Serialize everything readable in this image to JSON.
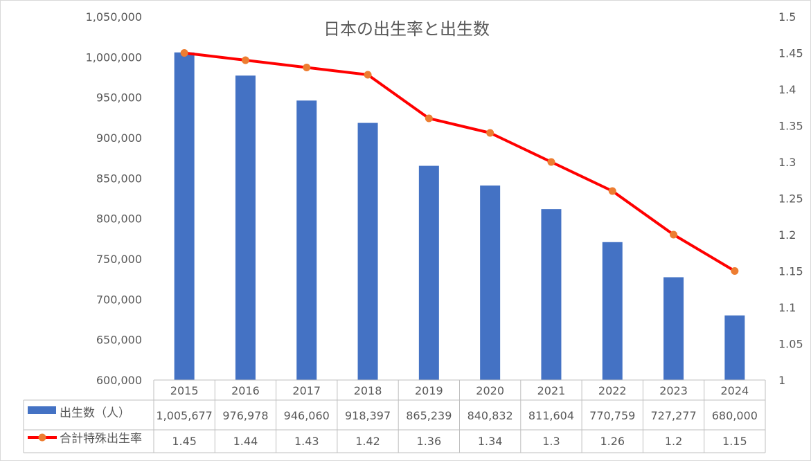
{
  "chart_data": {
    "type": "bar",
    "title": "日本の出生率と出生数",
    "categories": [
      "2015",
      "2016",
      "2017",
      "2018",
      "2019",
      "2020",
      "2021",
      "2022",
      "2023",
      "2024"
    ],
    "series": [
      {
        "name": "出生数（人）",
        "type": "bar",
        "axis": "left",
        "color": "#4472C4",
        "values": [
          1005677,
          976978,
          946060,
          918397,
          865239,
          840832,
          811604,
          770759,
          727277,
          680000
        ],
        "labels": [
          "1,005,677",
          "976,978",
          "946,060",
          "918,397",
          "865,239",
          "840,832",
          "811,604",
          "770,759",
          "727,277",
          "680,000"
        ]
      },
      {
        "name": "合計特殊出生率",
        "type": "line",
        "axis": "right",
        "color": "#FF0000",
        "marker_color": "#ED7D31",
        "values": [
          1.45,
          1.44,
          1.43,
          1.42,
          1.36,
          1.34,
          1.3,
          1.26,
          1.2,
          1.15
        ],
        "labels": [
          "1.45",
          "1.44",
          "1.43",
          "1.42",
          "1.36",
          "1.34",
          "1.3",
          "1.26",
          "1.2",
          "1.15"
        ]
      }
    ],
    "y_left": {
      "min": 600000,
      "max": 1050000,
      "ticks": [
        "600,000",
        "650,000",
        "700,000",
        "750,000",
        "800,000",
        "850,000",
        "900,000",
        "950,000",
        "1,000,000",
        "1,050,000"
      ]
    },
    "y_right": {
      "min": 1.0,
      "max": 1.5,
      "ticks": [
        "1",
        "1.05",
        "1.1",
        "1.15",
        "1.2",
        "1.25",
        "1.3",
        "1.35",
        "1.4",
        "1.45",
        "1.5"
      ]
    },
    "grid": false,
    "data_table": true
  }
}
